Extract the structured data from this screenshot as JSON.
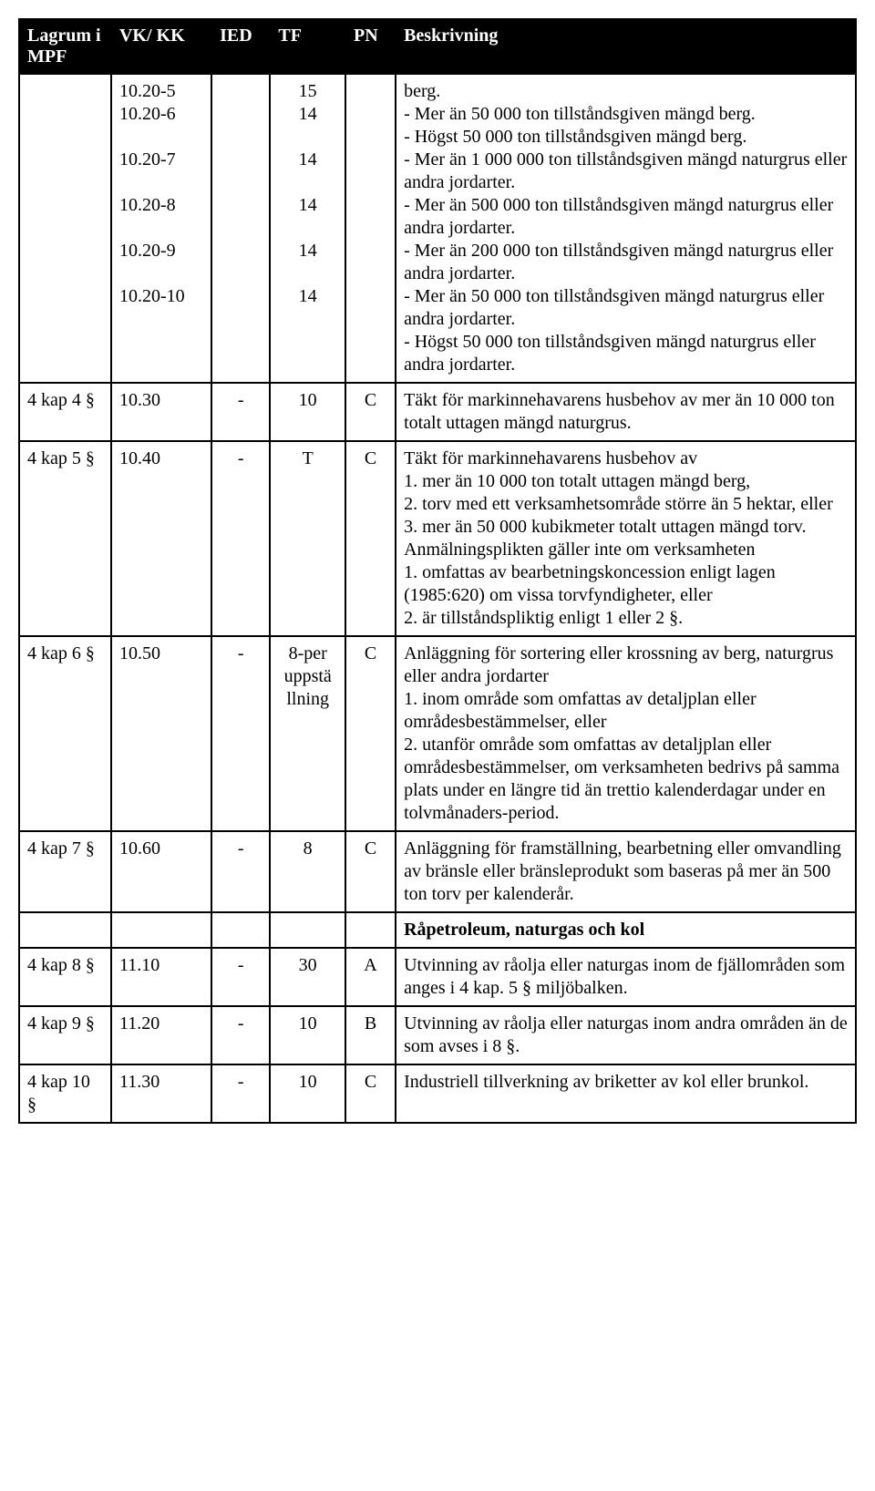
{
  "headers": {
    "lagrum": "Lagrum i MPF",
    "vk": "VK/ KK",
    "ied": "IED",
    "tf": "TF",
    "pn": "PN",
    "besk": "Beskrivning"
  },
  "row1": {
    "vk_lines": [
      "10.20-5",
      "10.20-6",
      "",
      "10.20-7",
      "",
      "10.20-8",
      "",
      "10.20-9",
      "",
      "10.20-10"
    ],
    "tf_lines": [
      "15",
      "14",
      "",
      "14",
      "",
      "14",
      "",
      "14",
      "",
      "14"
    ],
    "besk": "berg.\n- Mer än 50 000 ton tillståndsgiven mängd berg.\n- Högst 50 000 ton tillståndsgiven mängd berg.\n- Mer än 1 000 000 ton tillståndsgiven mängd naturgrus eller andra jordarter.\n- Mer än 500 000 ton tillståndsgiven mängd naturgrus eller andra jordarter.\n- Mer än 200 000 ton tillståndsgiven mängd naturgrus eller andra jordarter.\n- Mer än 50 000 ton tillståndsgiven mängd naturgrus eller andra jordarter.\n- Högst 50 000 ton tillståndsgiven mängd naturgrus eller andra jordarter."
  },
  "row2": {
    "lagrum": "4 kap 4 §",
    "vk": "10.30",
    "ied": "-",
    "tf": "10",
    "pn": "C",
    "besk": "Täkt för markinnehavarens husbehov av mer än 10 000 ton totalt uttagen mängd naturgrus."
  },
  "row3": {
    "lagrum": "4 kap 5 §",
    "vk": "10.40",
    "ied": "-",
    "tf": "T",
    "pn": "C",
    "besk": "Täkt för markinnehavarens husbehov av\n1. mer än 10 000 ton totalt uttagen mängd berg,\n2. torv med ett verksamhetsområde större än 5 hektar, eller\n3. mer än 50 000 kubikmeter totalt uttagen mängd torv.\nAnmälningsplikten gäller inte om verksamheten\n1. omfattas av bearbetningskoncession enligt lagen (1985:620) om vissa torvfyndigheter, eller\n2. är tillståndspliktig enligt 1 eller 2 §."
  },
  "row4": {
    "lagrum": "4 kap 6 §",
    "vk": "10.50",
    "ied": "-",
    "tf": "8-per uppstä llning",
    "pn": "C",
    "besk": "Anläggning för sortering eller krossning av berg, naturgrus eller andra jordarter\n1. inom område som omfattas av detaljplan eller områdesbestämmelser, eller\n2. utanför område som omfattas av detaljplan eller områdesbestämmelser, om verksamheten bedrivs på samma plats under en längre tid än trettio kalenderdagar under en tolvmånaders-period."
  },
  "row5": {
    "lagrum": "4 kap 7 §",
    "vk": "10.60",
    "ied": "-",
    "tf": "8",
    "pn": "C",
    "besk": "Anläggning för framställning, bearbetning eller omvandling av bränsle eller bränsleprodukt som baseras på mer än 500 ton torv per kalenderår."
  },
  "row6": {
    "besk": "Råpetroleum, naturgas och kol"
  },
  "row7": {
    "lagrum": "4 kap 8 §",
    "vk": "11.10",
    "ied": "-",
    "tf": "30",
    "pn": "A",
    "besk": "Utvinning av råolja eller naturgas inom de fjällområden som anges i 4 kap. 5 § miljöbalken."
  },
  "row8": {
    "lagrum": "4 kap 9 §",
    "vk": "11.20",
    "ied": "-",
    "tf": "10",
    "pn": "B",
    "besk": "Utvinning av råolja eller naturgas inom andra områden än de som avses i 8 §."
  },
  "row9": {
    "lagrum": "4 kap 10 §",
    "vk": "11.30",
    "ied": "-",
    "tf": "10",
    "pn": "C",
    "besk": "Industriell tillverkning av briketter av kol eller brunkol."
  },
  "styling": {
    "header_bg": "#000000",
    "header_fg": "#ffffff",
    "border_color": "#000000",
    "body_bg": "#ffffff",
    "font_family": "Times New Roman",
    "font_size_pt": 15,
    "row6_bold": true
  }
}
